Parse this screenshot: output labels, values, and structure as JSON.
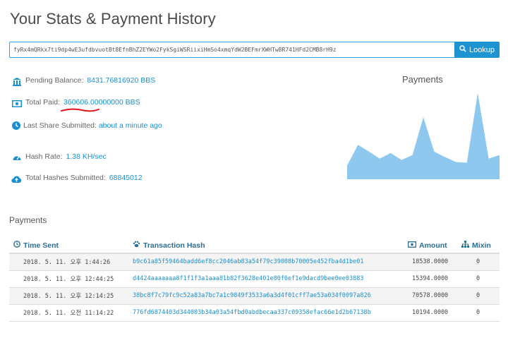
{
  "page": {
    "title": "Your Stats & Payment History"
  },
  "lookup": {
    "address_value": "fyRx4mQRkx7ti9dp4wE3ufdbvuotBt8EfnBhZ2EYWo2FykSgiWSRiixiHmSo4xmqYdW2BEFmrXWHTw8R741HFd2CMB8rH9z",
    "button_label": "Lookup",
    "button_icon": "search-icon"
  },
  "stats": {
    "pending_balance": {
      "label": "Pending Balance:",
      "value": "8431.76816920 BBS",
      "icon": "bank-icon"
    },
    "total_paid": {
      "label": "Total Paid:",
      "value": "360606.00000000 BBS",
      "icon": "money-icon"
    },
    "last_share": {
      "label": "Last Share Submitted:",
      "value": "about a minute ago",
      "icon": "clock-icon"
    },
    "hash_rate": {
      "label": "Hash Rate:",
      "value": "1.38 KH/sec",
      "icon": "gauge-icon"
    },
    "total_hashes": {
      "label": "Total Hashes Submitted:",
      "value": "68845012",
      "icon": "cloud-upload-icon"
    }
  },
  "chart_data": {
    "type": "area",
    "title": "Payments",
    "xlabel": "",
    "ylabel": "",
    "values": [
      20,
      50,
      40,
      30,
      38,
      28,
      35,
      90,
      40,
      32,
      25,
      24,
      125,
      30,
      35
    ],
    "ylim": [
      0,
      130
    ],
    "grid": false,
    "color": "#8fc8ef"
  },
  "payments": {
    "section_title": "Payments",
    "columns": {
      "time": "Time Sent",
      "hash": "Transaction Hash",
      "amount": "Amount",
      "mixin": "Mixin"
    },
    "rows": [
      {
        "time": "2018. 5. 11. 오후 1:44:26",
        "hash": "b9c61a85f59464badd6ef8cc2046ab83a54f79c39008b70005e452fba4d1be01",
        "amount": "18538.0000",
        "mixin": "0"
      },
      {
        "time": "2018. 5. 11. 오후 12:44:25",
        "hash": "d4424aaaaaaa8f1f1f3a1aaa81b82f3628e401e80f6ef1e9dacd9bee0ee03883",
        "amount": "15394.0000",
        "mixin": "0"
      },
      {
        "time": "2018. 5. 11. 오후 12:14:25",
        "hash": "38bc8f7c79fc9c52a83a7bc7a1c9849f3533a6a3d4f01cff7ae53a034f0097a826",
        "amount": "70578.0000",
        "mixin": "0"
      },
      {
        "time": "2018. 5. 11. 오전 11:14:22",
        "hash": "776fd6874403d344003b34a03a54fbd0abdbecaa337c09358efac66e1d2b67138b",
        "amount": "10194.0000",
        "mixin": "0"
      }
    ]
  }
}
